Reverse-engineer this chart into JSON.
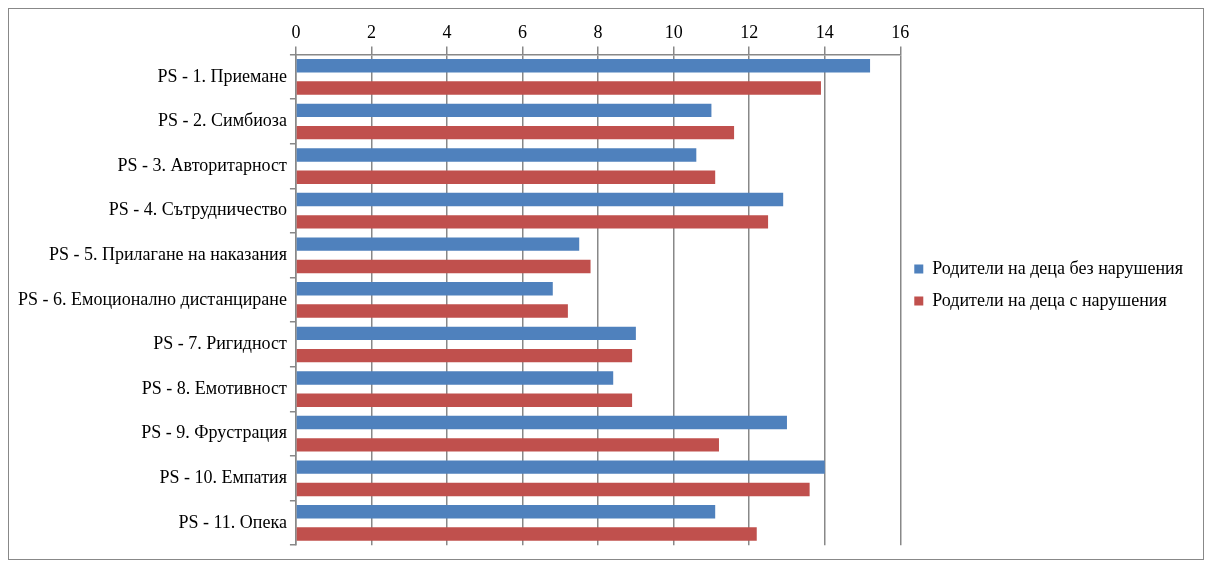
{
  "chart_data": {
    "type": "bar",
    "orientation": "horizontal",
    "categories": [
      "PS - 1. Приемане",
      "PS - 2. Симбиоза",
      "PS - 3. Авторитарност",
      "PS - 4. Сътрудничество",
      "PS - 5. Прилагане на наказания",
      "PS - 6. Емоционално дистанциране",
      "PS - 7. Ригидност",
      "PS - 8. Емотивност",
      "PS - 9. Фрустрация",
      "PS - 10. Емпатия",
      "PS - 11. Опека"
    ],
    "series": [
      {
        "name": "Родители на деца без нарушения",
        "color": "#4f81bd",
        "values": [
          15.2,
          11.0,
          10.6,
          12.9,
          7.5,
          6.8,
          9.0,
          8.4,
          13.0,
          14.0,
          11.1
        ]
      },
      {
        "name": "Родители на деца с нарушения",
        "color": "#c0504d",
        "values": [
          13.9,
          11.6,
          11.1,
          12.5,
          7.8,
          7.2,
          8.9,
          8.9,
          11.2,
          13.6,
          12.2
        ]
      }
    ],
    "xlim": [
      0,
      16
    ],
    "xticks": [
      0,
      2,
      4,
      6,
      8,
      10,
      12,
      14,
      16
    ],
    "grid": "x",
    "legend": "right"
  }
}
